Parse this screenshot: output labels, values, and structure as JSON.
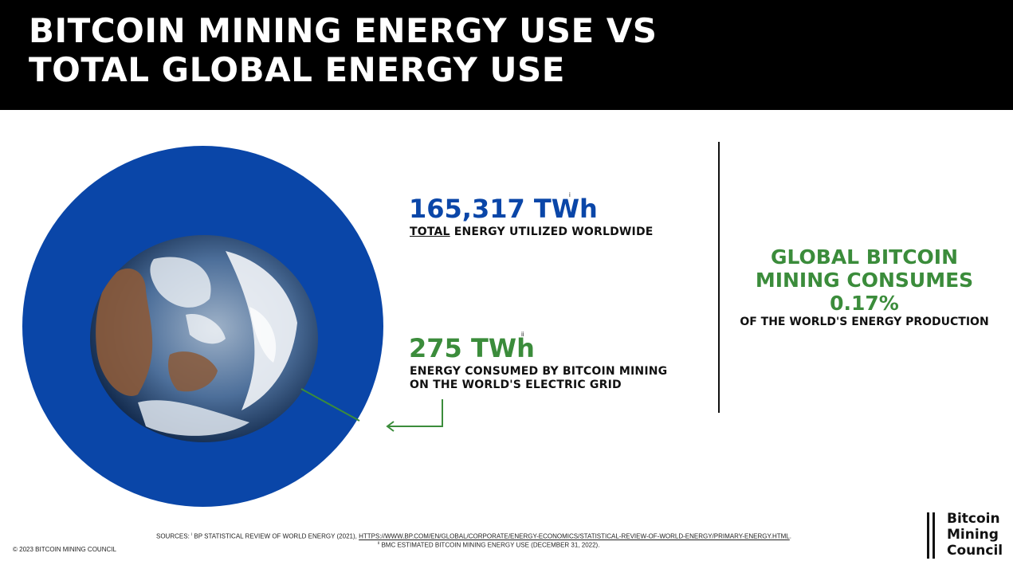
{
  "header": {
    "title_line1": "BITCOIN MINING ENERGY USE VS",
    "title_line2": "TOTAL GLOBAL ENERGY USE"
  },
  "stats": {
    "total": {
      "value": "165,317 TWh",
      "footnote": "i",
      "label_underlined": "TOTAL",
      "label_rest": " ENERGY UTILIZED WORLDWIDE"
    },
    "bitcoin": {
      "value": "275 TWh",
      "footnote": "ii",
      "label_line1": "ENERGY CONSUMED BY BITCOIN MINING",
      "label_line2": "ON THE WORLD'S ELECTRIC GRID"
    }
  },
  "callout": {
    "line1": "GLOBAL BITCOIN",
    "line2": "MINING CONSUMES",
    "line3": "0.17%",
    "sub": "OF THE WORLD'S ENERGY PRODUCTION"
  },
  "footer": {
    "sources_prefix": "SOURCES:",
    "sources_fn1": "i",
    "sources_text1": " BP STATISTICAL REVIEW OF WORLD ENERGY (2021), ",
    "sources_link": "HTTPS://WWW.BP.COM/EN/GLOBAL/CORPORATE/ENERGY-ECONOMICS/STATISTICAL-REVIEW-OF-WORLD-ENERGY/PRIMARY-ENERGY.HTML",
    "sources_text1_end": ".",
    "sources_fn2": "ii",
    "sources_text2": " BMC ESTIMATED BITCOIN MINING ENERGY USE (DECEMBER 31, 2022).",
    "copyright": "© 2023 BITCOIN MINING COUNCIL"
  },
  "logo": {
    "line1": "Bitcoin",
    "line2": "Mining",
    "line3": "Council"
  },
  "colors": {
    "header_bg": "#000000",
    "blue": "#0a46a8",
    "green": "#3b8c3b"
  }
}
